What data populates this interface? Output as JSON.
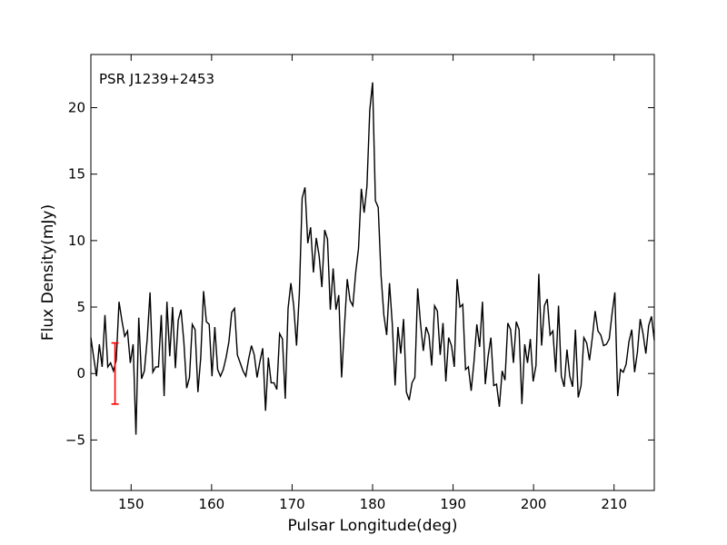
{
  "chart_data": {
    "type": "line",
    "title": "",
    "annotation": "PSR J1239+2453",
    "xlabel": "Pulsar Longitude(deg)",
    "ylabel": "Flux Density(mJy)",
    "xlim": [
      145,
      215
    ],
    "ylim": [
      -8.8,
      24
    ],
    "xticks": [
      150,
      160,
      170,
      180,
      190,
      200,
      210
    ],
    "yticks": [
      -5,
      0,
      5,
      10,
      15,
      20
    ],
    "grid": false,
    "legend": "none",
    "line_color": "#000000",
    "errorbar_color": "#ff0000",
    "errorbar": {
      "x": 148.0,
      "y": 0.0,
      "err": 2.3
    },
    "series": [
      {
        "x": [
          145.0,
          145.35,
          145.7,
          146.05,
          146.4,
          146.75,
          147.1,
          147.45,
          147.8,
          148.15,
          148.5,
          148.85,
          149.2,
          149.55,
          149.9,
          150.25,
          150.6,
          150.95,
          151.3,
          151.65,
          152.0,
          152.35,
          152.7,
          153.05,
          153.4,
          153.75,
          154.1,
          154.45,
          154.8,
          155.15,
          155.5,
          155.85,
          156.2,
          156.55,
          156.9,
          157.25,
          157.6,
          157.95,
          158.3,
          158.65,
          159.0,
          159.35,
          159.7,
          160.05,
          160.4,
          160.75,
          161.1,
          161.45,
          161.8,
          162.15,
          162.5,
          162.85,
          163.2,
          163.55,
          163.9,
          164.25,
          164.6,
          164.95,
          165.3,
          165.65,
          166.0,
          166.35,
          166.7,
          167.05,
          167.4,
          167.75,
          168.1,
          168.45,
          168.8,
          169.15,
          169.5,
          169.85,
          170.2,
          170.55,
          170.9,
          171.25,
          171.6,
          171.95,
          172.3,
          172.65,
          173.0,
          173.35,
          173.7,
          174.05,
          174.4,
          174.75,
          175.1,
          175.45,
          175.8,
          176.15,
          176.5,
          176.85,
          177.2,
          177.55,
          177.9,
          178.25,
          178.6,
          178.95,
          179.3,
          179.65,
          180.0,
          180.35,
          180.7,
          181.05,
          181.4,
          181.75,
          182.1,
          182.45,
          182.8,
          183.15,
          183.5,
          183.85,
          184.2,
          184.55,
          184.9,
          185.25,
          185.6,
          185.95,
          186.3,
          186.65,
          187.0,
          187.35,
          187.7,
          188.05,
          188.4,
          188.75,
          189.1,
          189.45,
          189.8,
          190.15,
          190.5,
          190.85,
          191.2,
          191.55,
          191.9,
          192.25,
          192.6,
          192.95,
          193.3,
          193.65,
          194.0,
          194.35,
          194.7,
          195.05,
          195.4,
          195.75,
          196.1,
          196.45,
          196.8,
          197.15,
          197.5,
          197.85,
          198.2,
          198.55,
          198.9,
          199.25,
          199.6,
          199.95,
          200.3,
          200.65,
          201.0,
          201.35,
          201.7,
          202.05,
          202.4,
          202.75,
          203.1,
          203.45,
          203.8,
          204.15,
          204.5,
          204.85,
          205.2,
          205.55,
          205.9,
          206.25,
          206.6,
          206.95,
          207.3,
          207.65,
          208.0,
          208.35,
          208.7,
          209.05,
          209.4,
          209.75,
          210.1,
          210.45,
          210.8,
          211.15,
          211.5,
          211.85,
          212.2,
          212.55,
          212.9,
          213.25,
          213.6,
          213.95,
          214.3,
          214.65,
          215.0
        ],
        "values": [
          2.7,
          1.2,
          -0.2,
          2.2,
          0.5,
          4.4,
          0.5,
          0.8,
          0.2,
          1.0,
          5.4,
          4.0,
          2.8,
          3.2,
          0.8,
          2.2,
          -4.6,
          4.2,
          -0.4,
          0.2,
          2.6,
          6.1,
          0.1,
          0.5,
          0.5,
          4.4,
          -1.7,
          5.4,
          1.3,
          5.0,
          0.4,
          4.0,
          4.8,
          2.4,
          -1.1,
          -0.3,
          3.7,
          3.3,
          -1.4,
          1.2,
          6.2,
          3.9,
          3.7,
          -0.2,
          3.5,
          0.3,
          -0.2,
          0.3,
          1.2,
          2.4,
          4.6,
          4.9,
          1.4,
          0.8,
          0.2,
          -0.2,
          1.1,
          2.1,
          1.4,
          -0.3,
          0.9,
          1.9,
          -2.8,
          1.2,
          -0.7,
          -0.7,
          -1.2,
          3.0,
          2.6,
          -1.9,
          4.9,
          6.8,
          5.1,
          2.1,
          6.0,
          13.2,
          14.0,
          9.8,
          11.0,
          7.6,
          10.2,
          8.9,
          6.5,
          10.8,
          10.1,
          4.8,
          7.9,
          4.8,
          5.9,
          -0.3,
          3.5,
          7.1,
          5.5,
          5.1,
          7.6,
          9.4,
          13.9,
          12.1,
          14.1,
          19.8,
          21.9,
          13.0,
          12.5,
          7.4,
          4.4,
          2.9,
          6.8,
          3.7,
          -0.9,
          3.5,
          1.5,
          4.1,
          -1.4,
          -2.0,
          -0.7,
          -0.3,
          6.4,
          3.8,
          1.7,
          3.5,
          2.9,
          0.6,
          5.1,
          4.7,
          1.4,
          3.8,
          -0.6,
          2.7,
          2.1,
          0.5,
          7.1,
          5.0,
          5.2,
          0.3,
          0.5,
          -1.3,
          0.9,
          3.7,
          2.0,
          5.4,
          -0.8,
          1.3,
          2.7,
          -0.9,
          -0.8,
          -2.5,
          0.2,
          -0.5,
          3.8,
          3.3,
          0.8,
          3.9,
          3.3,
          -2.3,
          2.2,
          0.8,
          2.6,
          -0.6,
          0.6,
          7.5,
          2.1,
          5.1,
          5.6,
          2.9,
          3.2,
          0.1,
          5.1,
          -0.2,
          -1.0,
          1.8,
          -0.2,
          -1.0,
          3.3,
          -1.8,
          -0.9,
          2.7,
          2.3,
          1.0,
          2.7,
          4.7,
          3.2,
          2.9,
          2.1,
          2.2,
          2.6,
          4.5,
          6.1,
          -1.7,
          0.3,
          0.1,
          0.7,
          2.4,
          3.3,
          0.1,
          1.6,
          4.1,
          3.0,
          1.5,
          3.6,
          4.3,
          2.5
        ]
      }
    ]
  }
}
